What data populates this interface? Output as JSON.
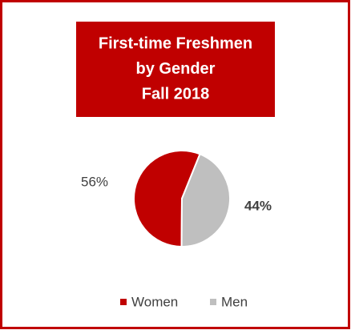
{
  "chart_data": {
    "type": "pie",
    "title": [
      "First-time Freshmen",
      "by Gender",
      "Fall 2018"
    ],
    "categories": [
      "Women",
      "Men"
    ],
    "values": [
      56,
      44
    ],
    "value_labels": [
      "56%",
      "44%"
    ],
    "colors": [
      "#c00000",
      "#bfbfbf"
    ],
    "legend": "bottom"
  }
}
